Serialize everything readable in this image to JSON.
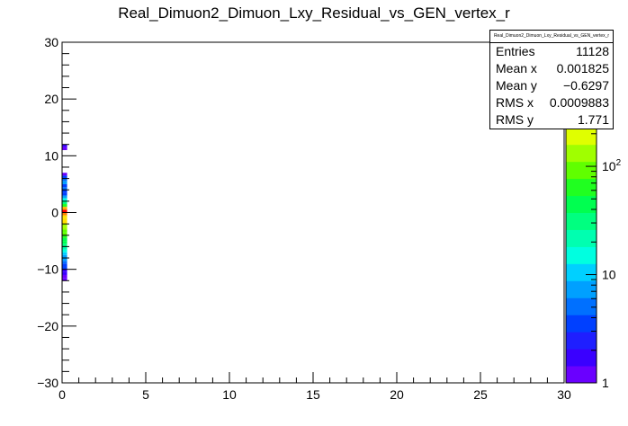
{
  "chart_data": {
    "type": "heatmap",
    "title": "Real_Dimuon2_Dimuon_Lxy_Residual_vs_GEN_vertex_r",
    "xlabel": "",
    "ylabel": "",
    "xlim": [
      0,
      30
    ],
    "ylim": [
      -30,
      30
    ],
    "x_ticks": [
      "0",
      "5",
      "10",
      "15",
      "20",
      "25",
      "30"
    ],
    "y_ticks": [
      "−30",
      "−20",
      "−10",
      "0",
      "10",
      "20",
      "30"
    ],
    "x_tick_values": [
      0,
      5,
      10,
      15,
      20,
      25,
      30
    ],
    "y_tick_values": [
      -30,
      -20,
      -10,
      0,
      10,
      20,
      30
    ],
    "z_scale": "log",
    "z_ticks": [
      "1",
      "10",
      "10^2"
    ],
    "z_tick_values": [
      1,
      10,
      100
    ],
    "z_range": [
      1,
      1400
    ],
    "x_bin_width": 0.3,
    "cells": [
      {
        "x": 0,
        "y": 11.5,
        "z": 2
      },
      {
        "x": 0,
        "y": 11.0,
        "z": 1
      },
      {
        "x": 0,
        "y": 6.5,
        "z": 1
      },
      {
        "x": 0,
        "y": 6.0,
        "z": 4
      },
      {
        "x": 0,
        "y": 5.5,
        "z": 5
      },
      {
        "x": 0,
        "y": 5.0,
        "z": 7
      },
      {
        "x": 0,
        "y": 4.5,
        "z": 4
      },
      {
        "x": 0,
        "y": 4.0,
        "z": 6
      },
      {
        "x": 0,
        "y": 3.5,
        "z": 3
      },
      {
        "x": 0,
        "y": 3.0,
        "z": 4
      },
      {
        "x": 0,
        "y": 2.5,
        "z": 8
      },
      {
        "x": 0,
        "y": 2.0,
        "z": 15
      },
      {
        "x": 0,
        "y": 1.5,
        "z": 30
      },
      {
        "x": 0,
        "y": 1.0,
        "z": 60
      },
      {
        "x": 0,
        "y": 0.5,
        "z": 400
      },
      {
        "x": 0,
        "y": 0.0,
        "z": 1300
      },
      {
        "x": 0,
        "y": -0.5,
        "z": 600
      },
      {
        "x": 0,
        "y": -1.0,
        "z": 250
      },
      {
        "x": 0,
        "y": -1.5,
        "z": 300
      },
      {
        "x": 0,
        "y": -2.0,
        "z": 280
      },
      {
        "x": 0,
        "y": -2.5,
        "z": 150
      },
      {
        "x": 0,
        "y": -3.0,
        "z": 120
      },
      {
        "x": 0,
        "y": -3.5,
        "z": 100
      },
      {
        "x": 0,
        "y": -4.0,
        "z": 80
      },
      {
        "x": 0,
        "y": -4.5,
        "z": 60
      },
      {
        "x": 0,
        "y": -5.0,
        "z": 50
      },
      {
        "x": 0,
        "y": -5.5,
        "z": 40
      },
      {
        "x": 0,
        "y": -6.0,
        "z": 30
      },
      {
        "x": 0,
        "y": -6.5,
        "z": 20
      },
      {
        "x": 0,
        "y": -7.0,
        "z": 15
      },
      {
        "x": 0,
        "y": -7.5,
        "z": 10
      },
      {
        "x": 0,
        "y": -8.0,
        "z": 8
      },
      {
        "x": 0,
        "y": -8.5,
        "z": 7
      },
      {
        "x": 0,
        "y": -9.0,
        "z": 5
      },
      {
        "x": 0,
        "y": -9.5,
        "z": 4
      },
      {
        "x": 0,
        "y": -10.0,
        "z": 3
      },
      {
        "x": 0,
        "y": -10.5,
        "z": 2
      },
      {
        "x": 0,
        "y": -11.0,
        "z": 2
      },
      {
        "x": 0,
        "y": -11.5,
        "z": 1
      },
      {
        "x": 0,
        "y": -12.0,
        "z": 1
      }
    ],
    "y_bin_height": 0.5,
    "stats": {
      "title": "Real_Dimuon2_Dimuon_Lxy_Residual_vs_GEN_vertex_r",
      "rows": [
        {
          "key": "Entries",
          "value": "11128"
        },
        {
          "key": "Mean x",
          "value": "0.001825"
        },
        {
          "key": "Mean y",
          "value": "−0.6297"
        },
        {
          "key": "RMS x",
          "value": "0.0009883"
        },
        {
          "key": "RMS y",
          "value": "1.771"
        }
      ]
    },
    "palette": [
      "#6a00ff",
      "#3a00ff",
      "#1f1fff",
      "#0040ff",
      "#0070ff",
      "#00a0ff",
      "#00d0ff",
      "#00ffe0",
      "#00ffb0",
      "#00ff80",
      "#00ff50",
      "#20ff20",
      "#60ff00",
      "#a0ff00",
      "#e0ff00",
      "#ffe000",
      "#ffb000",
      "#ff8000",
      "#ff4000",
      "#ff0000"
    ]
  }
}
